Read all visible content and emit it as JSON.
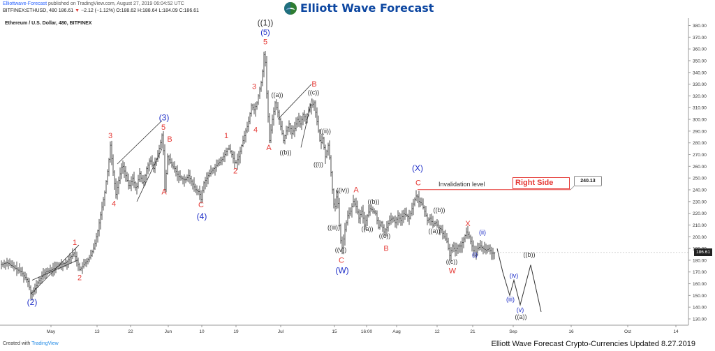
{
  "header": {
    "user": "Elliottwave-Forecast",
    "published": " published on TradingView.com, August 27, 2019 06:04:52 UTC",
    "symbol": "BITFINEX:ETHUSD, 480",
    "price": "186.61",
    "change": "−2.12 (−1.12%)",
    "ohlc": "O:188.62 H:188.64 L:184.09 C:186.61"
  },
  "chart_title": "Ethereum / U.S. Dollar, 480, BITFINEX",
  "logo_text": "Elliott Wave Forecast",
  "footer": {
    "created_with": "Created with ",
    "tv": "TradingView",
    "updated": "Elliott Wave Forecast Crypto-Currencies Updated 8.27.2019"
  },
  "colors": {
    "red": "#e53935",
    "blue": "#1e2ec8",
    "dark": "#333333",
    "bars": "#222222"
  },
  "chart_data": {
    "type": "line",
    "title": "Ethereum / U.S. Dollar, 480, BITFINEX",
    "y_ticks": [
      130,
      140,
      150,
      160,
      170,
      180,
      190,
      200,
      210,
      220,
      230,
      240,
      250,
      260,
      270,
      280,
      290,
      300,
      310,
      320,
      330,
      340,
      350,
      360,
      370,
      380
    ],
    "ylim": [
      125,
      385
    ],
    "x_ticks": [
      "May",
      "13",
      "22",
      "Jun",
      "10",
      "19",
      "Jul",
      "15",
      "16:00",
      "Aug",
      "12",
      "21",
      "Sep",
      "16",
      "Oct",
      "14"
    ],
    "last_price": "186.61",
    "price_tag": "240.13",
    "invalidation_label": "Invalidation level",
    "right_side_label": "Right Side",
    "price_path": [
      [
        0,
        176
      ],
      [
        10,
        178
      ],
      [
        20,
        174
      ],
      [
        30,
        170
      ],
      [
        40,
        162
      ],
      [
        45,
        150
      ],
      [
        50,
        156
      ],
      [
        55,
        162
      ],
      [
        60,
        166
      ],
      [
        65,
        170
      ],
      [
        75,
        172
      ],
      [
        85,
        176
      ],
      [
        95,
        178
      ],
      [
        100,
        182
      ],
      [
        106,
        186
      ],
      [
        110,
        180
      ],
      [
        114,
        172
      ],
      [
        120,
        176
      ],
      [
        125,
        180
      ],
      [
        130,
        184
      ],
      [
        135,
        192
      ],
      [
        140,
        205
      ],
      [
        145,
        222
      ],
      [
        150,
        238
      ],
      [
        155,
        260
      ],
      [
        158,
        278
      ],
      [
        162,
        255
      ],
      [
        166,
        236
      ],
      [
        170,
        248
      ],
      [
        175,
        262
      ],
      [
        180,
        252
      ],
      [
        185,
        242
      ],
      [
        190,
        250
      ],
      [
        195,
        240
      ],
      [
        200,
        254
      ],
      [
        205,
        244
      ],
      [
        210,
        258
      ],
      [
        215,
        266
      ],
      [
        220,
        258
      ],
      [
        225,
        268
      ],
      [
        230,
        280
      ],
      [
        233,
        290
      ],
      [
        236,
        240
      ],
      [
        240,
        268
      ],
      [
        245,
        262
      ],
      [
        250,
        258
      ],
      [
        255,
        252
      ],
      [
        260,
        250
      ],
      [
        265,
        248
      ],
      [
        270,
        252
      ],
      [
        275,
        246
      ],
      [
        280,
        240
      ],
      [
        285,
        238
      ],
      [
        288,
        232
      ],
      [
        292,
        246
      ],
      [
        296,
        250
      ],
      [
        300,
        254
      ],
      [
        306,
        258
      ],
      [
        312,
        262
      ],
      [
        318,
        266
      ],
      [
        322,
        270
      ],
      [
        327,
        276
      ],
      [
        332,
        270
      ],
      [
        337,
        262
      ],
      [
        342,
        268
      ],
      [
        347,
        280
      ],
      [
        352,
        290
      ],
      [
        356,
        298
      ],
      [
        360,
        312
      ],
      [
        364,
        308
      ],
      [
        368,
        314
      ],
      [
        372,
        326
      ],
      [
        375,
        334
      ],
      [
        379,
        362
      ],
      [
        382,
        322
      ],
      [
        386,
        282
      ],
      [
        390,
        300
      ],
      [
        394,
        314
      ],
      [
        398,
        306
      ],
      [
        402,
        294
      ],
      [
        406,
        282
      ],
      [
        410,
        290
      ],
      [
        414,
        296
      ],
      [
        418,
        288
      ],
      [
        422,
        292
      ],
      [
        426,
        300
      ],
      [
        430,
        296
      ],
      [
        434,
        304
      ],
      [
        438,
        300
      ],
      [
        442,
        308
      ],
      [
        446,
        312
      ],
      [
        450,
        314
      ],
      [
        453,
        302
      ],
      [
        456,
        290
      ],
      [
        459,
        278
      ],
      [
        462,
        284
      ],
      [
        466,
        268
      ],
      [
        470,
        278
      ],
      [
        473,
        262
      ],
      [
        476,
        240
      ],
      [
        479,
        222
      ],
      [
        483,
        238
      ],
      [
        487,
        200
      ],
      [
        490,
        190
      ],
      [
        494,
        206
      ],
      [
        498,
        218
      ],
      [
        502,
        222
      ],
      [
        506,
        230
      ],
      [
        510,
        226
      ],
      [
        514,
        216
      ],
      [
        518,
        222
      ],
      [
        522,
        210
      ],
      [
        526,
        218
      ],
      [
        530,
        224
      ],
      [
        534,
        222
      ],
      [
        538,
        220
      ],
      [
        542,
        208
      ],
      [
        546,
        212
      ],
      [
        550,
        204
      ],
      [
        554,
        208
      ],
      [
        558,
        214
      ],
      [
        562,
        216
      ],
      [
        566,
        212
      ],
      [
        570,
        218
      ],
      [
        574,
        214
      ],
      [
        578,
        220
      ],
      [
        582,
        218
      ],
      [
        586,
        216
      ],
      [
        590,
        224
      ],
      [
        594,
        232
      ],
      [
        597,
        236
      ],
      [
        600,
        230
      ],
      [
        604,
        228
      ],
      [
        608,
        222
      ],
      [
        612,
        214
      ],
      [
        616,
        216
      ],
      [
        620,
        210
      ],
      [
        624,
        212
      ],
      [
        628,
        208
      ],
      [
        632,
        206
      ],
      [
        636,
        200
      ],
      [
        640,
        196
      ],
      [
        644,
        184
      ],
      [
        648,
        192
      ],
      [
        652,
        188
      ],
      [
        656,
        192
      ],
      [
        660,
        192
      ],
      [
        664,
        198
      ],
      [
        668,
        204
      ],
      [
        672,
        200
      ],
      [
        676,
        192
      ],
      [
        680,
        184
      ],
      [
        684,
        190
      ],
      [
        688,
        192
      ],
      [
        692,
        190
      ],
      [
        696,
        188
      ],
      [
        700,
        190
      ],
      [
        704,
        186
      ],
      [
        708,
        186
      ]
    ],
    "projection": [
      [
        712,
        190
      ],
      [
        720,
        170
      ],
      [
        730,
        150
      ],
      [
        736,
        163
      ],
      [
        745,
        142
      ],
      [
        760,
        176
      ],
      [
        775,
        136
      ]
    ],
    "labels": [
      {
        "t": "((1))",
        "px": 380,
        "v": 380,
        "c": "dark",
        "s": 12
      },
      {
        "t": "(5)",
        "px": 380,
        "v": 372,
        "c": "blue",
        "s": 11
      },
      {
        "t": "5",
        "px": 380,
        "v": 364,
        "c": "red",
        "s": 11
      },
      {
        "t": "3",
        "px": 364,
        "v": 326,
        "c": "red",
        "s": 11
      },
      {
        "t": "4",
        "px": 366,
        "v": 289,
        "c": "red",
        "s": 11
      },
      {
        "t": "((a))",
        "px": 397,
        "v": 319,
        "c": "dark",
        "s": 9
      },
      {
        "t": "((b))",
        "px": 409,
        "v": 270,
        "c": "dark",
        "s": 9
      },
      {
        "t": "A",
        "px": 385,
        "v": 274,
        "c": "red",
        "s": 11
      },
      {
        "t": "B",
        "px": 450,
        "v": 328,
        "c": "red",
        "s": 11
      },
      {
        "t": "((c))",
        "px": 449,
        "v": 321,
        "c": "dark",
        "s": 9
      },
      {
        "t": "((ii))",
        "px": 466,
        "v": 288,
        "c": "dark",
        "s": 9
      },
      {
        "t": "((i))",
        "px": 456,
        "v": 260,
        "c": "dark",
        "s": 9
      },
      {
        "t": "((iv))",
        "px": 491,
        "v": 238,
        "c": "dark",
        "s": 9
      },
      {
        "t": "((iii))",
        "px": 478,
        "v": 206,
        "c": "dark",
        "s": 9
      },
      {
        "t": "((v))",
        "px": 488,
        "v": 187,
        "c": "dark",
        "s": 9
      },
      {
        "t": "C",
        "px": 489,
        "v": 178,
        "c": "red",
        "s": 11
      },
      {
        "t": "(W)",
        "px": 490,
        "v": 169,
        "c": "blue",
        "s": 12
      },
      {
        "t": "A",
        "px": 510,
        "v": 238,
        "c": "red",
        "s": 11
      },
      {
        "t": "((b))",
        "px": 535,
        "v": 228,
        "c": "dark",
        "s": 9
      },
      {
        "t": "((a))",
        "px": 526,
        "v": 205,
        "c": "dark",
        "s": 9
      },
      {
        "t": "((c))",
        "px": 551,
        "v": 199,
        "c": "dark",
        "s": 9
      },
      {
        "t": "B",
        "px": 553,
        "v": 188,
        "c": "red",
        "s": 11
      },
      {
        "t": "(X)",
        "px": 598,
        "v": 256,
        "c": "blue",
        "s": 12
      },
      {
        "t": "C",
        "px": 599,
        "v": 244,
        "c": "red",
        "s": 11
      },
      {
        "t": "((b))",
        "px": 629,
        "v": 221,
        "c": "dark",
        "s": 9
      },
      {
        "t": "((a))",
        "px": 622,
        "v": 203,
        "c": "dark",
        "s": 9
      },
      {
        "t": "((c))",
        "px": 647,
        "v": 177,
        "c": "dark",
        "s": 9
      },
      {
        "t": "W",
        "px": 648,
        "v": 169,
        "c": "red",
        "s": 11
      },
      {
        "t": "X",
        "px": 670,
        "v": 209,
        "c": "red",
        "s": 11
      },
      {
        "t": "(ii)",
        "px": 691,
        "v": 202,
        "c": "blue",
        "s": 9
      },
      {
        "t": "(i)",
        "px": 680,
        "v": 183,
        "c": "blue",
        "s": 9
      },
      {
        "t": "((b))",
        "px": 758,
        "v": 183,
        "c": "dark",
        "s": 9
      },
      {
        "t": "(iv)",
        "px": 736,
        "v": 165,
        "c": "blue",
        "s": 9
      },
      {
        "t": "(iii)",
        "px": 731,
        "v": 145,
        "c": "blue",
        "s": 9
      },
      {
        "t": "(v)",
        "px": 745,
        "v": 136,
        "c": "blue",
        "s": 9
      },
      {
        "t": "((a))",
        "px": 746,
        "v": 130,
        "c": "dark",
        "s": 9
      },
      {
        "t": "(3)",
        "px": 235,
        "v": 299,
        "c": "blue",
        "s": 12
      },
      {
        "t": "5",
        "px": 234,
        "v": 291,
        "c": "red",
        "s": 11
      },
      {
        "t": "3",
        "px": 158,
        "v": 284,
        "c": "red",
        "s": 11
      },
      {
        "t": "4",
        "px": 163,
        "v": 226,
        "c": "red",
        "s": 11
      },
      {
        "t": "B",
        "px": 243,
        "v": 281,
        "c": "red",
        "s": 11
      },
      {
        "t": "A",
        "px": 235,
        "v": 236,
        "c": "red",
        "s": 11
      },
      {
        "t": "C",
        "px": 288,
        "v": 225,
        "c": "red",
        "s": 11
      },
      {
        "t": "(4)",
        "px": 289,
        "v": 215,
        "c": "blue",
        "s": 12
      },
      {
        "t": "1",
        "px": 324,
        "v": 284,
        "c": "red",
        "s": 11
      },
      {
        "t": "2",
        "px": 337,
        "v": 254,
        "c": "red",
        "s": 11
      },
      {
        "t": "1",
        "px": 107,
        "v": 193,
        "c": "red",
        "s": 11
      },
      {
        "t": "2",
        "px": 114,
        "v": 163,
        "c": "red",
        "s": 11
      },
      {
        "t": "(2)",
        "px": 46,
        "v": 142,
        "c": "blue",
        "s": 12
      }
    ]
  }
}
